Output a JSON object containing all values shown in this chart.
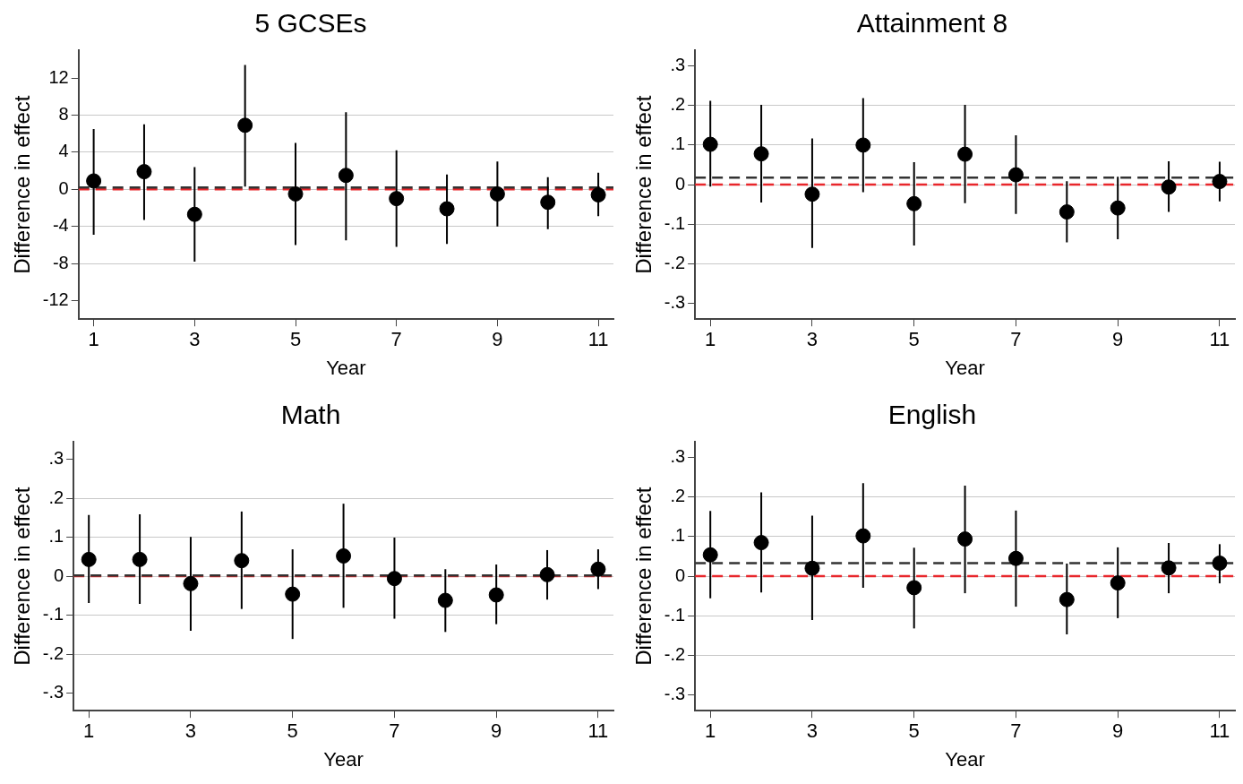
{
  "chart_data": [
    {
      "type": "scatter",
      "title": "5 GCSEs",
      "xlabel": "Year",
      "ylabel": "Difference in effect",
      "marker": "circle",
      "grid": "y",
      "xlim": [
        0.7,
        11.3
      ],
      "xticks": [
        1,
        3,
        5,
        7,
        9,
        11
      ],
      "ylim": [
        -14,
        15
      ],
      "yticks": [
        -12,
        -8,
        -4,
        0,
        4,
        8,
        12
      ],
      "series": [
        {
          "color": "#000000",
          "x": [
            1,
            2,
            3,
            4,
            5,
            6,
            7,
            8,
            9,
            10,
            11
          ],
          "values": [
            0.9,
            1.9,
            -2.7,
            6.9,
            -0.5,
            1.5,
            -1.0,
            -2.1,
            -0.5,
            -1.4,
            -0.6
          ],
          "errors": [
            [
              -4.9,
              6.5
            ],
            [
              -3.3,
              7.0
            ],
            [
              -7.8,
              2.4
            ],
            [
              0.3,
              13.4
            ],
            [
              -6.0,
              5.0
            ],
            [
              -5.5,
              8.3
            ],
            [
              -6.2,
              4.2
            ],
            [
              -5.9,
              1.6
            ],
            [
              -4.0,
              3.0
            ],
            [
              -4.3,
              1.3
            ],
            [
              -2.9,
              1.8
            ]
          ]
        }
      ],
      "ref_lines": [
        {
          "axis": "y",
          "value": 0,
          "color": "#e8262b",
          "line_style": "dashed"
        },
        {
          "axis": "y",
          "value": 0.2,
          "color": "#333333",
          "line_style": "dashed"
        }
      ]
    },
    {
      "type": "scatter",
      "title": "Attainment 8",
      "xlabel": "Year",
      "ylabel": "Difference in effect",
      "marker": "circle",
      "grid": "y",
      "xlim": [
        0.7,
        11.3
      ],
      "xticks": [
        1,
        3,
        5,
        7,
        9,
        11
      ],
      "ylim": [
        -0.34,
        0.34
      ],
      "yticks": [
        {
          "value": -0.3,
          "label": "-.3"
        },
        {
          "value": -0.2,
          "label": "-.2"
        },
        {
          "value": -0.1,
          "label": "-.1"
        },
        0,
        {
          "value": 0.1,
          "label": ".1"
        },
        {
          "value": 0.2,
          "label": ".2"
        },
        {
          "value": 0.3,
          "label": ".3"
        }
      ],
      "series": [
        {
          "color": "#000000",
          "x": [
            1,
            2,
            3,
            4,
            5,
            6,
            7,
            8,
            9,
            10,
            11
          ],
          "values": [
            0.102,
            0.078,
            -0.024,
            0.1,
            -0.048,
            0.077,
            0.025,
            -0.069,
            -0.059,
            -0.006,
            0.008
          ],
          "errors": [
            [
              -0.005,
              0.212
            ],
            [
              -0.045,
              0.202
            ],
            [
              -0.16,
              0.117
            ],
            [
              -0.019,
              0.219
            ],
            [
              -0.154,
              0.057
            ],
            [
              -0.047,
              0.202
            ],
            [
              -0.074,
              0.125
            ],
            [
              -0.146,
              0.009
            ],
            [
              -0.138,
              0.02
            ],
            [
              -0.069,
              0.059
            ],
            [
              -0.042,
              0.058
            ]
          ]
        }
      ],
      "ref_lines": [
        {
          "axis": "y",
          "value": 0,
          "color": "#e8262b",
          "line_style": "dashed"
        },
        {
          "axis": "y",
          "value": 0.018,
          "color": "#333333",
          "line_style": "dashed"
        }
      ]
    },
    {
      "type": "scatter",
      "title": "Math",
      "xlabel": "Year",
      "ylabel": "Difference in effect",
      "marker": "circle",
      "grid": "y",
      "xlim": [
        0.7,
        11.3
      ],
      "xticks": [
        1,
        3,
        5,
        7,
        9,
        11
      ],
      "ylim": [
        -0.345,
        0.345
      ],
      "yticks": [
        {
          "value": -0.3,
          "label": "-.3"
        },
        {
          "value": -0.2,
          "label": "-.2"
        },
        {
          "value": -0.1,
          "label": "-.1"
        },
        0,
        {
          "value": 0.1,
          "label": ".1"
        },
        {
          "value": 0.2,
          "label": ".2"
        },
        {
          "value": 0.3,
          "label": ".3"
        }
      ],
      "series": [
        {
          "color": "#000000",
          "x": [
            1,
            2,
            3,
            4,
            5,
            6,
            7,
            8,
            9,
            10,
            11
          ],
          "values": [
            0.043,
            0.043,
            -0.019,
            0.04,
            -0.046,
            0.052,
            -0.006,
            -0.062,
            -0.048,
            0.004,
            0.018
          ],
          "errors": [
            [
              -0.069,
              0.157
            ],
            [
              -0.071,
              0.159
            ],
            [
              -0.14,
              0.101
            ],
            [
              -0.084,
              0.166
            ],
            [
              -0.161,
              0.069
            ],
            [
              -0.081,
              0.186
            ],
            [
              -0.109,
              0.099
            ],
            [
              -0.143,
              0.018
            ],
            [
              -0.123,
              0.03
            ],
            [
              -0.06,
              0.067
            ],
            [
              -0.033,
              0.069
            ]
          ]
        }
      ],
      "ref_lines": [
        {
          "axis": "y",
          "value": 0,
          "color": "#e8262b",
          "line_style": "dashed"
        },
        {
          "axis": "y",
          "value": 0.002,
          "color": "#333333",
          "line_style": "dashed"
        }
      ]
    },
    {
      "type": "scatter",
      "title": "English",
      "xlabel": "Year",
      "ylabel": "Difference in effect",
      "marker": "circle",
      "grid": "y",
      "xlim": [
        0.7,
        11.3
      ],
      "xticks": [
        1,
        3,
        5,
        7,
        9,
        11
      ],
      "ylim": [
        -0.34,
        0.34
      ],
      "yticks": [
        {
          "value": -0.3,
          "label": "-.3"
        },
        {
          "value": -0.2,
          "label": "-.2"
        },
        {
          "value": -0.1,
          "label": "-.1"
        },
        0,
        {
          "value": 0.1,
          "label": ".1"
        },
        {
          "value": 0.2,
          "label": ".2"
        },
        {
          "value": 0.3,
          "label": ".3"
        }
      ],
      "series": [
        {
          "color": "#000000",
          "x": [
            1,
            2,
            3,
            4,
            5,
            6,
            7,
            8,
            9,
            10,
            11
          ],
          "values": [
            0.054,
            0.085,
            0.02,
            0.102,
            -0.029,
            0.094,
            0.045,
            -0.059,
            -0.017,
            0.021,
            0.033
          ],
          "errors": [
            [
              -0.056,
              0.165
            ],
            [
              -0.041,
              0.212
            ],
            [
              -0.111,
              0.153
            ],
            [
              -0.029,
              0.235
            ],
            [
              -0.132,
              0.072
            ],
            [
              -0.043,
              0.229
            ],
            [
              -0.077,
              0.166
            ],
            [
              -0.147,
              0.032
            ],
            [
              -0.106,
              0.073
            ],
            [
              -0.043,
              0.084
            ],
            [
              -0.018,
              0.081
            ]
          ]
        }
      ],
      "ref_lines": [
        {
          "axis": "y",
          "value": 0,
          "color": "#e8262b",
          "line_style": "dashed"
        },
        {
          "axis": "y",
          "value": 0.033,
          "color": "#333333",
          "line_style": "dashed"
        }
      ]
    }
  ]
}
